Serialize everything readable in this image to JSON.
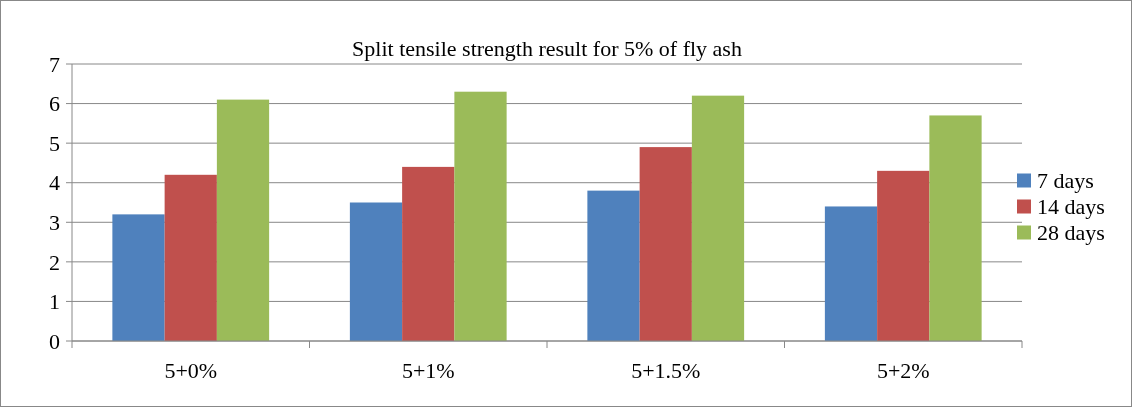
{
  "chart_data": {
    "type": "bar",
    "title": "Split tensile strength result  for 5% of fly ash",
    "categories": [
      "5+0%",
      "5+1%",
      "5+1.5%",
      "5+2%"
    ],
    "series": [
      {
        "name": "7 days",
        "color": "#4f81bd",
        "values": [
          3.2,
          3.5,
          3.8,
          3.4
        ]
      },
      {
        "name": "14 days",
        "color": "#c0504d",
        "values": [
          4.2,
          4.4,
          4.9,
          4.3
        ]
      },
      {
        "name": "28 days",
        "color": "#9bbb59",
        "values": [
          6.1,
          6.3,
          6.2,
          5.7
        ]
      }
    ],
    "ylim": [
      0,
      7
    ],
    "yticks": [
      0,
      1,
      2,
      3,
      4,
      5,
      6,
      7
    ],
    "grid": "y",
    "legend": "right"
  }
}
